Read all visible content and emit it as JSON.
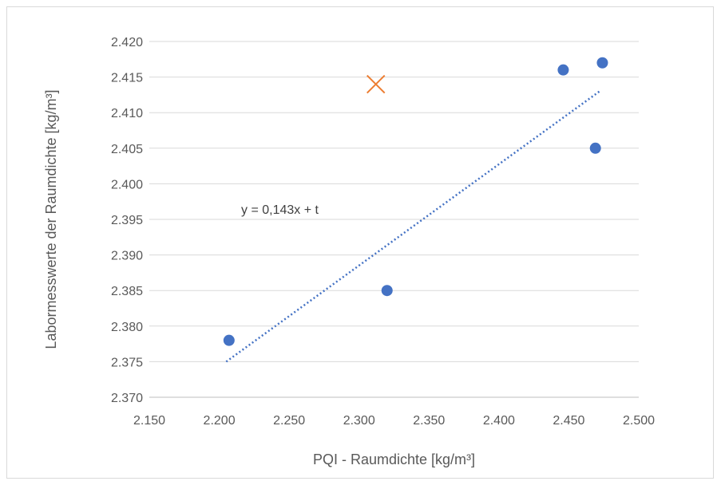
{
  "chart_data": {
    "type": "scatter",
    "xlabel": "PQI - Raumdichte [kg/m³]",
    "ylabel": "Labormesswerte der  Raumdichte [kg/m³]",
    "xlim": [
      2.15,
      2.5
    ],
    "ylim": [
      2.37,
      2.42
    ],
    "x_ticks": [
      "2.150",
      "2.200",
      "2.250",
      "2.300",
      "2.350",
      "2.400",
      "2.450",
      "2.500"
    ],
    "y_ticks": [
      "2.370",
      "2.375",
      "2.380",
      "2.385",
      "2.390",
      "2.395",
      "2.400",
      "2.405",
      "2.410",
      "2.415",
      "2.420"
    ],
    "grid": "horizontal",
    "series": [
      {
        "marker": "circle",
        "color": "#4472c4",
        "points": [
          {
            "x": 2.207,
            "y": 2.378
          },
          {
            "x": 2.32,
            "y": 2.385
          },
          {
            "x": 2.446,
            "y": 2.416
          },
          {
            "x": 2.469,
            "y": 2.405
          },
          {
            "x": 2.474,
            "y": 2.417
          }
        ]
      },
      {
        "marker": "x",
        "color": "#ed7d31",
        "points": [
          {
            "x": 2.312,
            "y": 2.414
          }
        ]
      }
    ],
    "trendline": {
      "style": "dotted",
      "color": "#4472c4",
      "start": {
        "x": 2.205,
        "y": 2.375
      },
      "end": {
        "x": 2.472,
        "y": 2.413
      },
      "label": "y = 0,143x + t"
    }
  }
}
